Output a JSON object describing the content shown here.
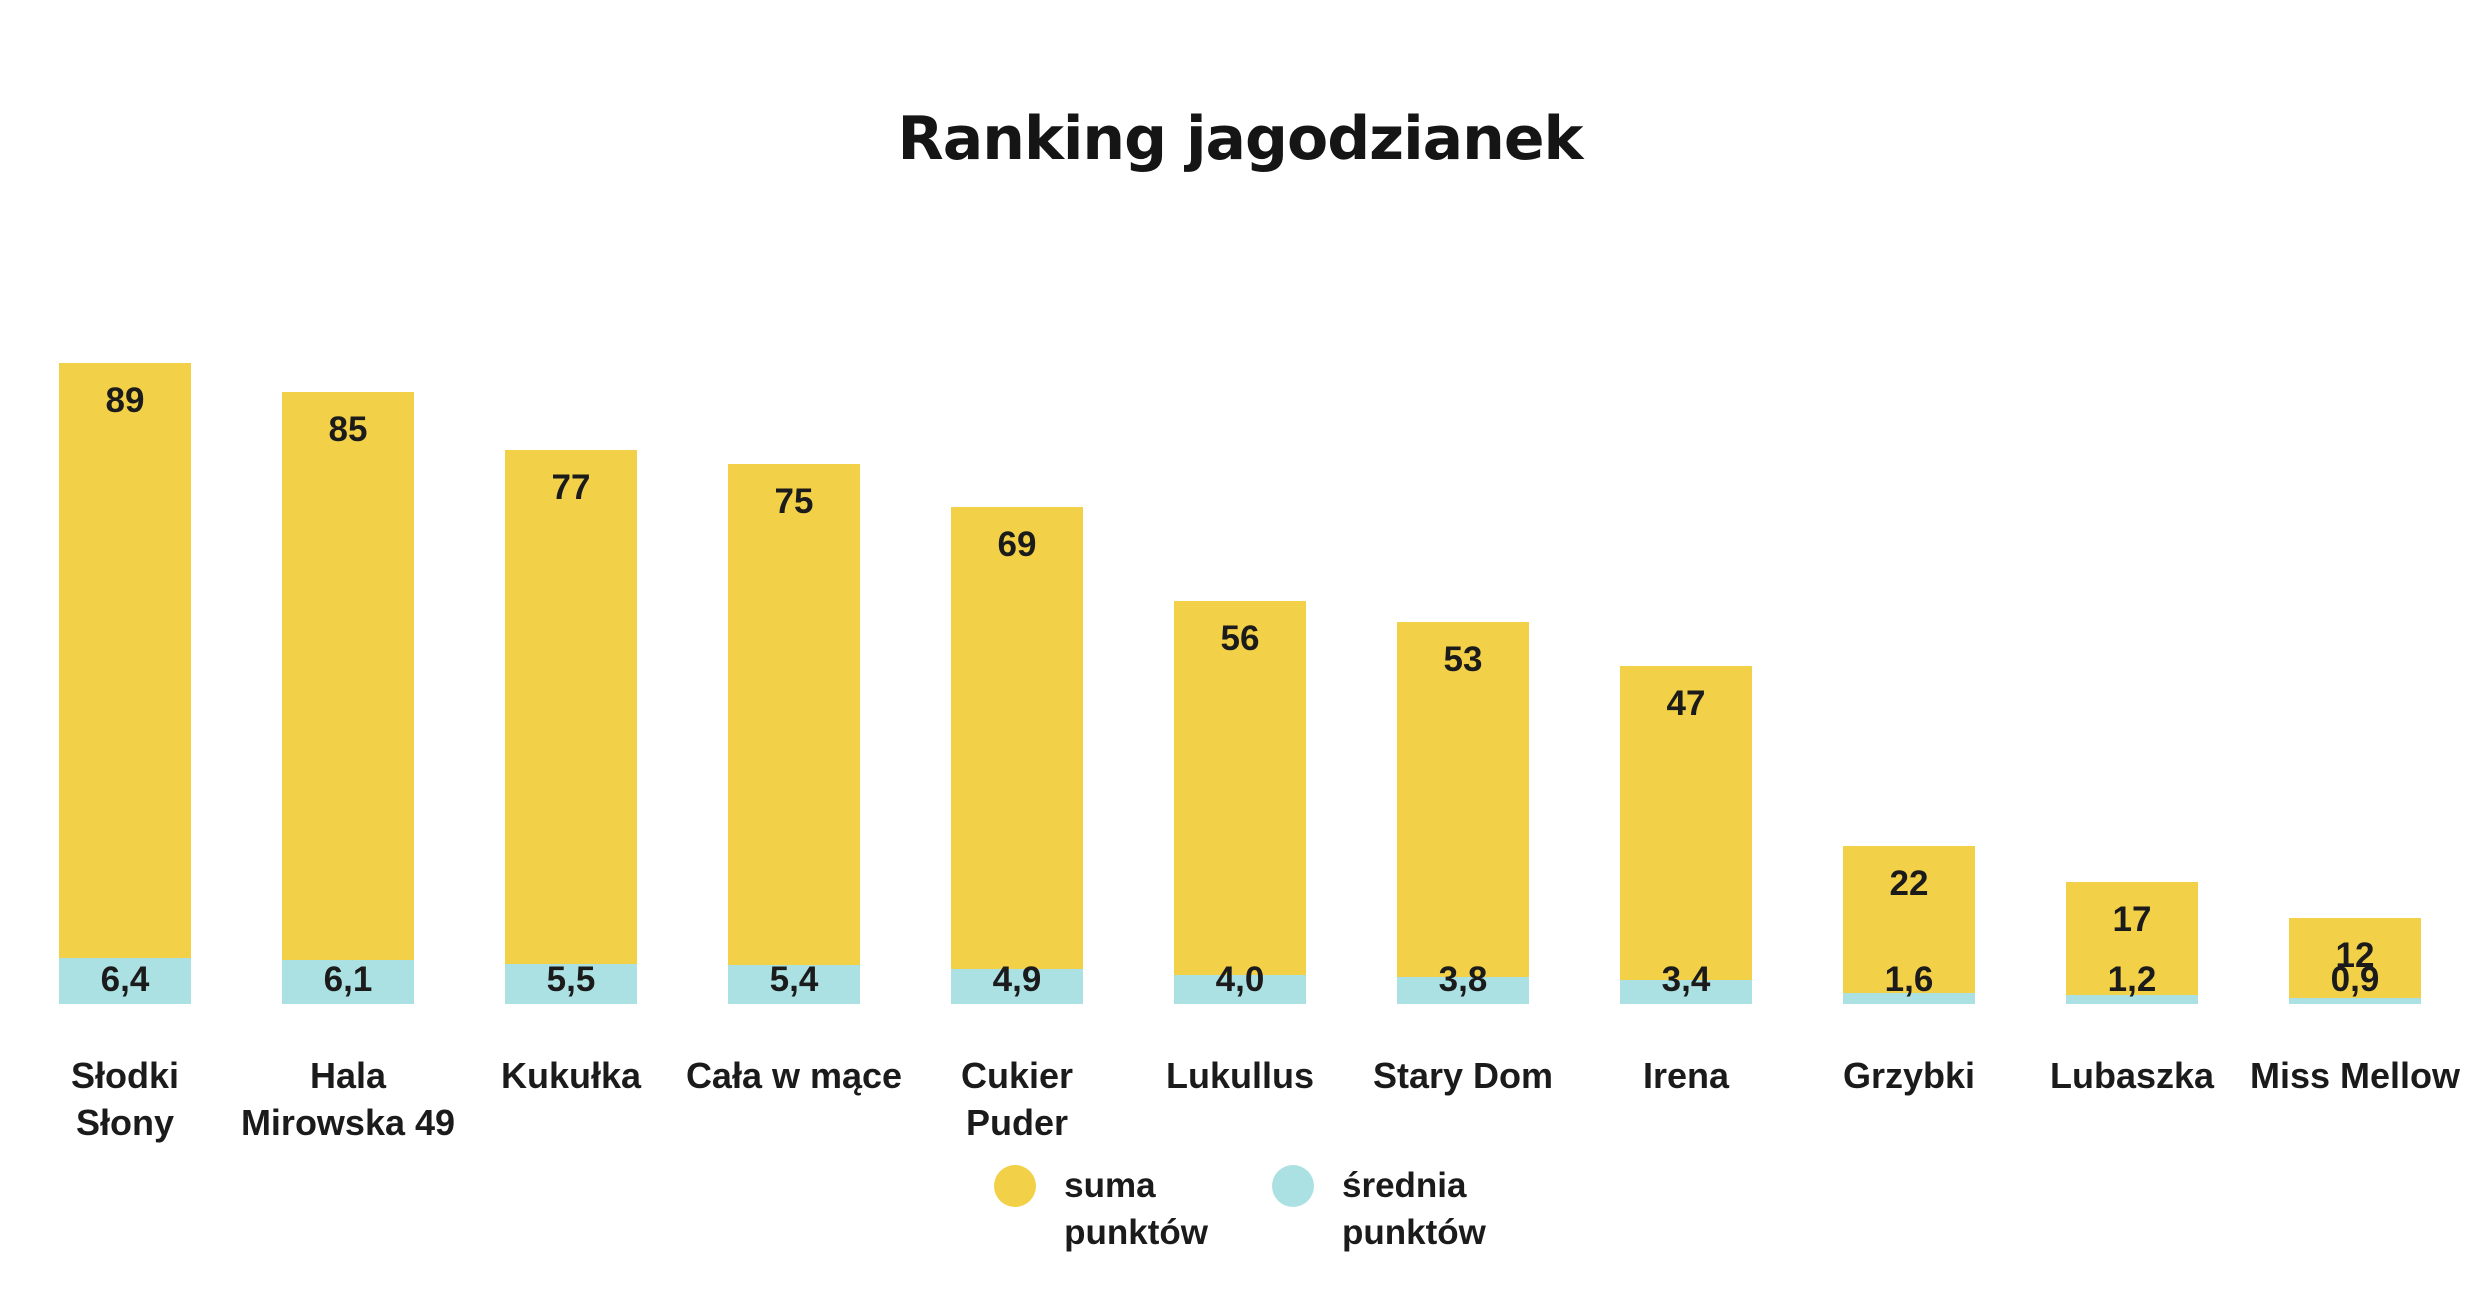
{
  "title": "Ranking jagodzianek",
  "chart_data": {
    "type": "bar",
    "title": "Ranking jagodzianek",
    "categories": [
      "Słodki\nSłony",
      "Hala\nMirowska 49",
      "Kukułka",
      "Cała w mące",
      "Cukier\nPuder",
      "Lukullus",
      "Stary Dom",
      "Irena",
      "Grzybki",
      "Lubaszka",
      "Miss Mellow"
    ],
    "series": [
      {
        "name": "suma punktów",
        "color": "#F2D048",
        "values": [
          89,
          85,
          77,
          75,
          69,
          56,
          53,
          47,
          22,
          17,
          12
        ],
        "labels": [
          "89",
          "85",
          "77",
          "75",
          "69",
          "56",
          "53",
          "47",
          "22",
          "17",
          "12"
        ]
      },
      {
        "name": "średnia punktów",
        "color": "#ACE1E4",
        "values": [
          6.4,
          6.1,
          5.5,
          5.4,
          4.9,
          4.0,
          3.8,
          3.4,
          1.6,
          1.2,
          0.9
        ],
        "labels": [
          "6,4",
          "6,1",
          "5,5",
          "5,4",
          "4,9",
          "4,0",
          "3,8",
          "3,4",
          "1,6",
          "1,2",
          "0,9"
        ]
      }
    ],
    "value_labels_position": "inside-top",
    "avg_labels_position": "inside-bottom",
    "axes_visible": false,
    "grid": false,
    "legend_position": "bottom",
    "ylim": [
      0,
      98
    ]
  },
  "legend": {
    "items": [
      {
        "label": "suma\npunktów",
        "color": "#F2D048"
      },
      {
        "label": "średnia\npunktów",
        "color": "#ACE1E4"
      }
    ]
  }
}
